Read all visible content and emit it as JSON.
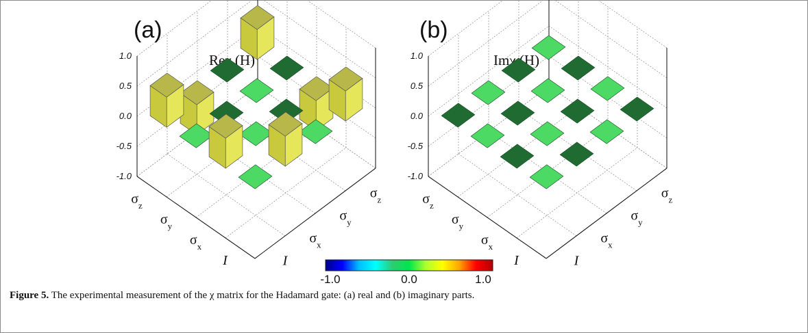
{
  "chart_data": [
    {
      "type": "bar3d",
      "panel_label": "(a)",
      "title": "Reχ (H)",
      "zlim": [
        -1.0,
        1.0
      ],
      "z_ticks": [
        "1.0",
        "0.5",
        "0.0",
        "-0.5",
        "-1.0"
      ],
      "row_labels": [
        {
          "base": "I",
          "sub": ""
        },
        {
          "base": "σ",
          "sub": "x"
        },
        {
          "base": "σ",
          "sub": "y"
        },
        {
          "base": "σ",
          "sub": "z"
        }
      ],
      "col_labels": [
        {
          "base": "I",
          "sub": ""
        },
        {
          "base": "σ",
          "sub": "x"
        },
        {
          "base": "σ",
          "sub": "y"
        },
        {
          "base": "σ",
          "sub": "z"
        }
      ],
      "values": [
        [
          0.0,
          0.5,
          0.0,
          0.5
        ],
        [
          0.5,
          0.0,
          0.0,
          -0.5
        ],
        [
          0.0,
          0.0,
          0.0,
          0.0
        ],
        [
          0.5,
          -0.5,
          0.0,
          0.5
        ]
      ]
    },
    {
      "type": "bar3d",
      "panel_label": "(b)",
      "title": "Imχ (H)",
      "zlim": [
        -1.0,
        1.0
      ],
      "z_ticks": [
        "1.0",
        "0.5",
        "0.0",
        "-0.5",
        "-1.0"
      ],
      "row_labels": [
        {
          "base": "I",
          "sub": ""
        },
        {
          "base": "σ",
          "sub": "x"
        },
        {
          "base": "σ",
          "sub": "y"
        },
        {
          "base": "σ",
          "sub": "z"
        }
      ],
      "col_labels": [
        {
          "base": "I",
          "sub": ""
        },
        {
          "base": "σ",
          "sub": "x"
        },
        {
          "base": "σ",
          "sub": "y"
        },
        {
          "base": "σ",
          "sub": "z"
        }
      ],
      "values": [
        [
          0.0,
          0.0,
          0.0,
          0.0
        ],
        [
          0.0,
          0.0,
          0.0,
          0.0
        ],
        [
          0.0,
          0.0,
          0.0,
          0.0
        ],
        [
          0.0,
          0.0,
          0.0,
          0.0
        ]
      ]
    }
  ],
  "colorbar": {
    "min_label": "-1.0",
    "mid_label": "0.0",
    "max_label": "1.0",
    "colors": [
      "#00008b",
      "#0000ff",
      "#00bfff",
      "#00ffff",
      "#2ecc71",
      "#00e64d",
      "#adff2f",
      "#ffff00",
      "#ffa500",
      "#ff0000",
      "#b30000"
    ]
  },
  "caption": {
    "label": "Figure 5.",
    "text": " The experimental measurement of the χ matrix for the Hadamard gate: (a) real and (b) imaginary parts."
  },
  "colors": {
    "tile_light": "#4cd964",
    "tile_dark": "#1f6b32",
    "bar_face": "#e6e65a",
    "bar_side": "#c9c93e",
    "bar_top": "#b8b84a"
  }
}
